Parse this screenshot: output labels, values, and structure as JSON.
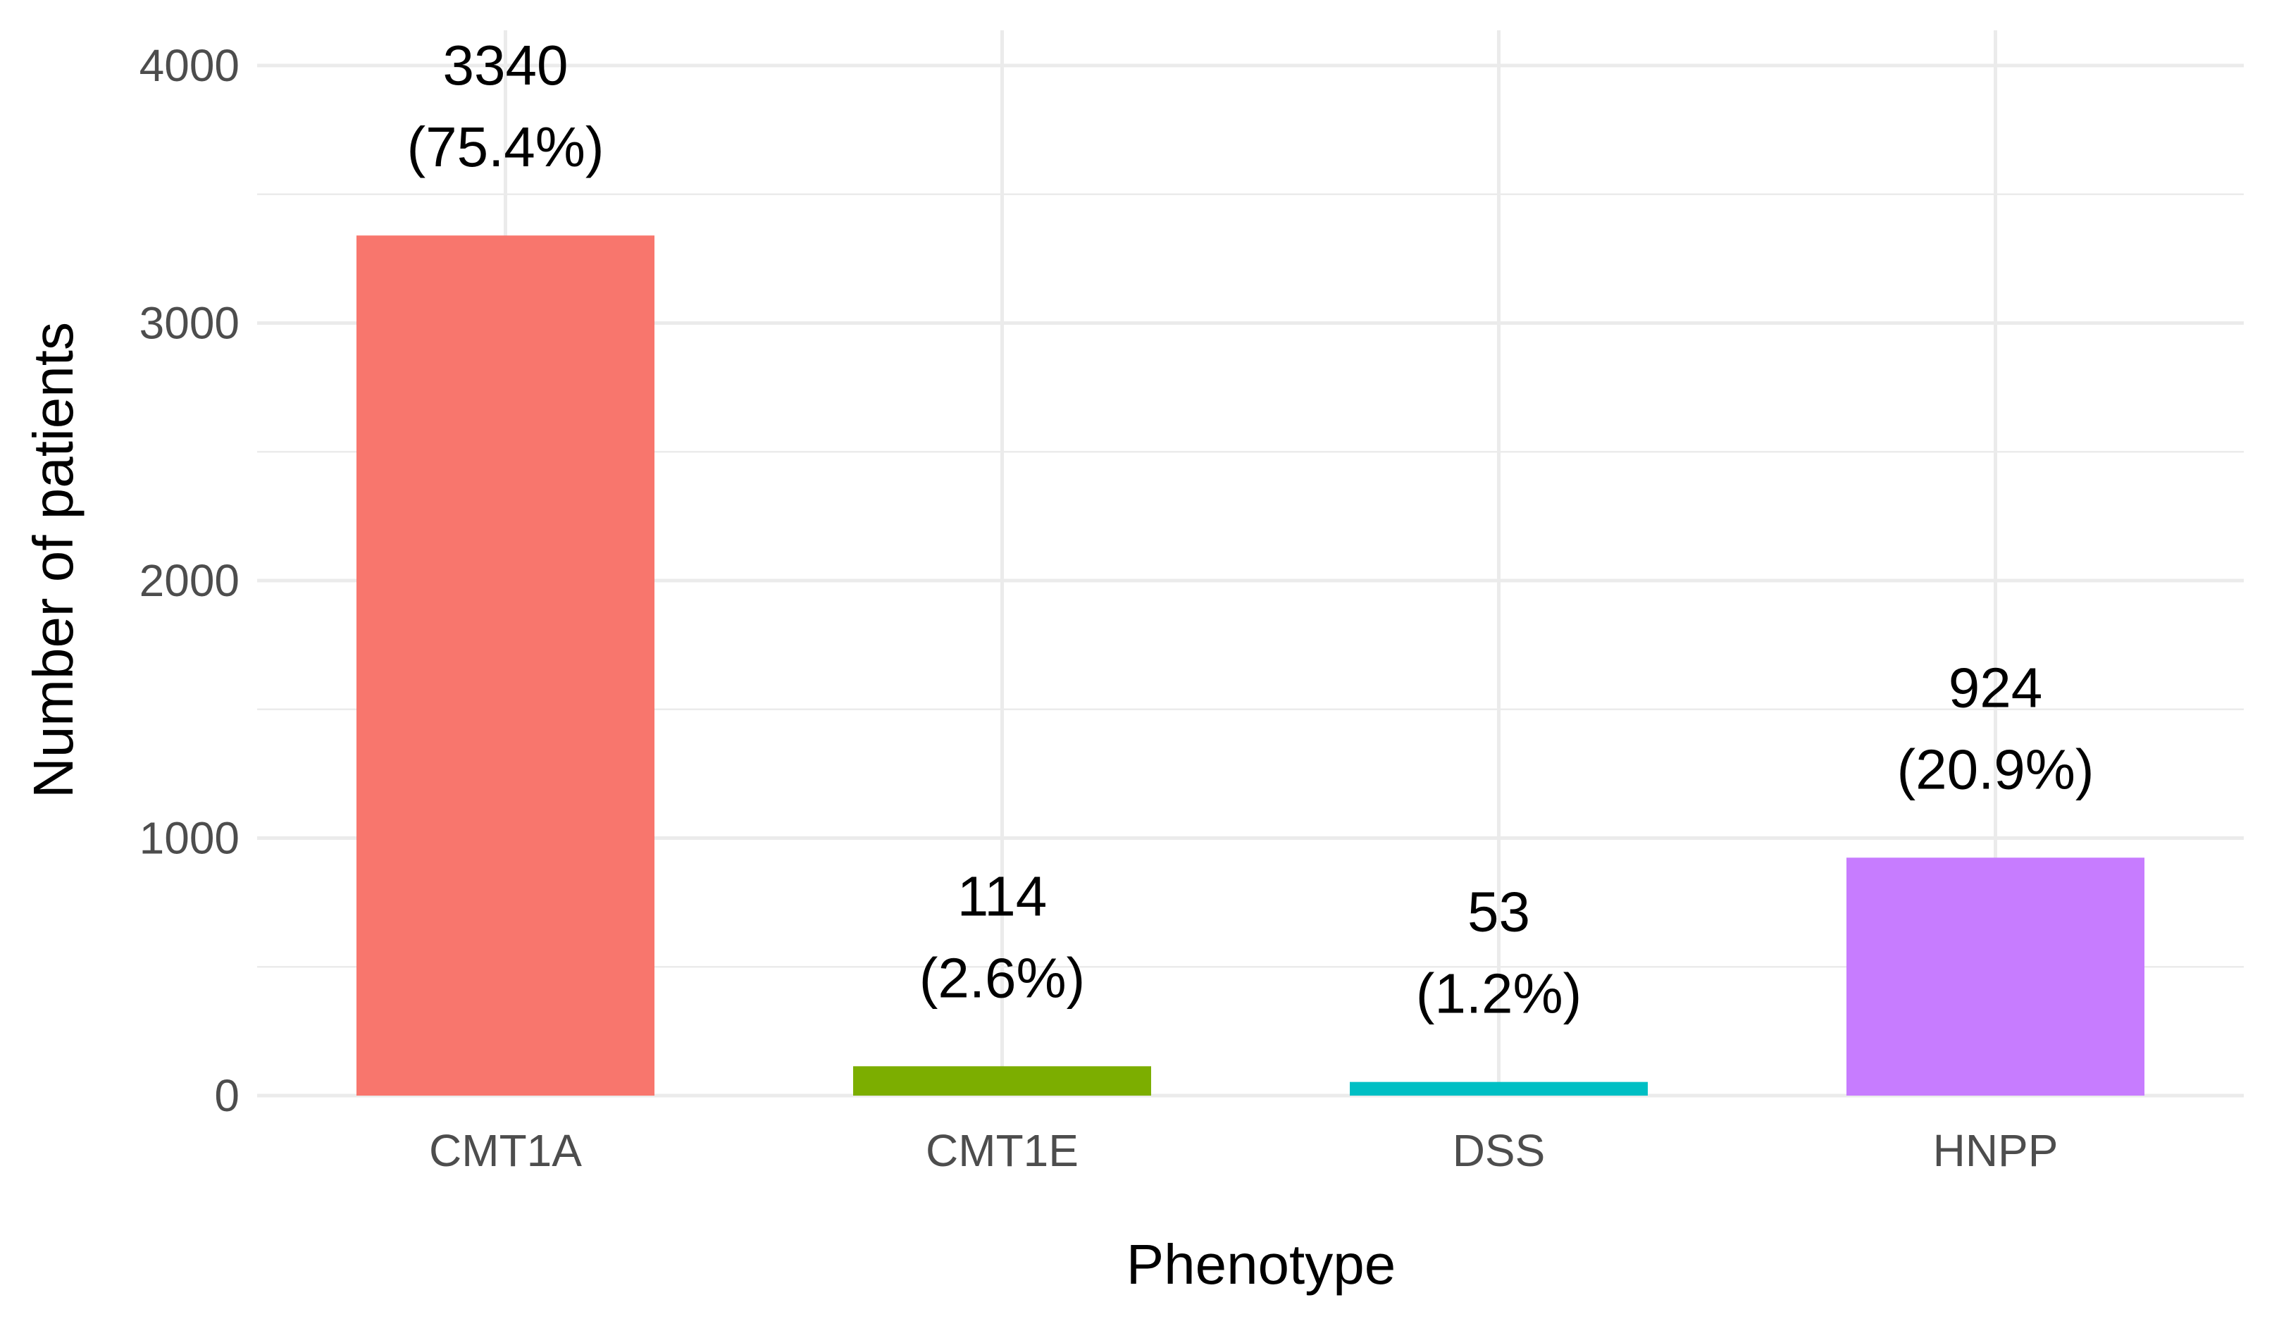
{
  "chart_data": {
    "type": "bar",
    "xlabel": "Phenotype",
    "ylabel": "Number of patients",
    "ylim": [
      0,
      4000
    ],
    "y_ticks": [
      "0",
      "1000",
      "2000",
      "3000",
      "4000"
    ],
    "grid": true,
    "legend": "none",
    "categories": [
      "CMT1A",
      "CMT1E",
      "DSS",
      "HNPP"
    ],
    "values": [
      3340,
      114,
      53,
      924
    ],
    "labels": [
      {
        "count": "3340",
        "percent": "(75.4%)"
      },
      {
        "count": "114",
        "percent": "(2.6%)"
      },
      {
        "count": "53",
        "percent": "(1.2%)"
      },
      {
        "count": "924",
        "percent": "(20.9%)"
      }
    ],
    "colors": [
      "#F8766D",
      "#7CAE00",
      "#00BFC4",
      "#C77CFF"
    ]
  }
}
